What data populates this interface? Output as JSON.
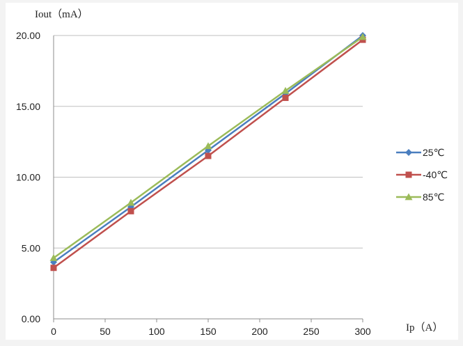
{
  "chart_data": {
    "type": "line",
    "xlabel": "Ip（A）",
    "ylabel": "Iout（mA）",
    "xlim": [
      0,
      300
    ],
    "ylim": [
      0,
      20
    ],
    "x_ticks": [
      "0",
      "50",
      "100",
      "150",
      "200",
      "250",
      "300"
    ],
    "y_ticks": [
      "0.00",
      "5.00",
      "10.00",
      "15.00",
      "20.00"
    ],
    "grid": "horizontal",
    "legend_position": "right",
    "x": [
      0,
      75,
      150,
      225,
      300
    ],
    "series": [
      {
        "name": "25℃",
        "color": "#4a7ebf",
        "marker": "diamond",
        "values": [
          4.0,
          7.9,
          11.9,
          15.9,
          20.0
        ]
      },
      {
        "name": "-40℃",
        "color": "#c0504d",
        "marker": "square",
        "values": [
          3.6,
          7.6,
          11.5,
          15.6,
          19.7
        ]
      },
      {
        "name": "85℃",
        "color": "#9bbb59",
        "marker": "triangle",
        "values": [
          4.3,
          8.2,
          12.2,
          16.1,
          19.9
        ]
      }
    ]
  }
}
